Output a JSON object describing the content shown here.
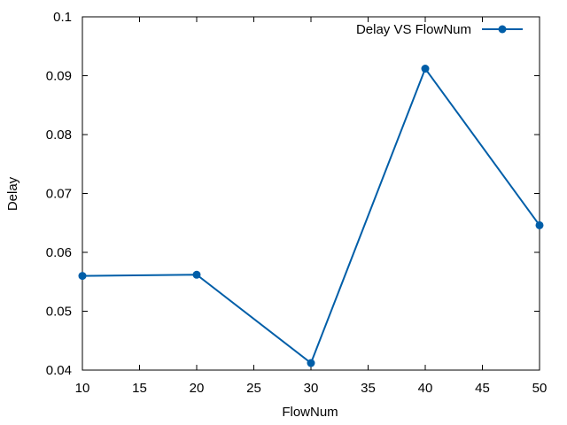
{
  "chart_data": {
    "type": "line",
    "title": "",
    "xlabel": "FlowNum",
    "ylabel": "Delay",
    "x": [
      10,
      20,
      30,
      40,
      50
    ],
    "xlim": [
      10,
      50
    ],
    "ylim": [
      0.04,
      0.1
    ],
    "x_ticks": [
      "10",
      "15",
      "20",
      "25",
      "30",
      "35",
      "40",
      "45",
      "50"
    ],
    "y_ticks": [
      "0.04",
      "0.05",
      "0.06",
      "0.07",
      "0.08",
      "0.09",
      "0.1"
    ],
    "grid": false,
    "legend_position": "top-right",
    "series": [
      {
        "name": "Delay VS FlowNum",
        "values": [
          0.056,
          0.0562,
          0.0412,
          0.0912,
          0.0646
        ],
        "color": "#005ea8",
        "marker": "circle"
      }
    ]
  }
}
